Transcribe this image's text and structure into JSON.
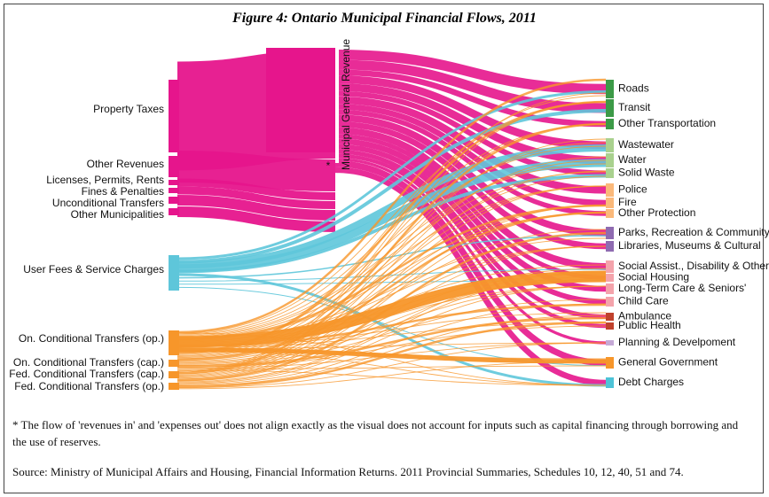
{
  "title": "Figure 4: Ontario Municipal Financial Flows, 2011",
  "sources": [
    {
      "label": "Property Taxes"
    },
    {
      "label": "Other Revenues"
    },
    {
      "label": "Licenses, Permits, Rents"
    },
    {
      "label": "Fines & Penalties"
    },
    {
      "label": "Unconditional Transfers"
    },
    {
      "label": "Other Municipalities"
    },
    {
      "label": "User Fees & Service Charges"
    },
    {
      "label": "On. Conditional Transfers (op.)"
    },
    {
      "label": "On. Conditional Transfers (cap.)"
    },
    {
      "label": "Fed. Conditional Transfers (cap.)"
    },
    {
      "label": "Fed. Conditional Transfers (op.)"
    }
  ],
  "middle": {
    "label": "Municipal General Revenue",
    "note_marker": "*"
  },
  "destinations": [
    {
      "label": "Roads"
    },
    {
      "label": "Transit"
    },
    {
      "label": "Other Transportation"
    },
    {
      "label": "Wastewater"
    },
    {
      "label": "Water"
    },
    {
      "label": "Solid Waste"
    },
    {
      "label": "Police"
    },
    {
      "label": "Fire"
    },
    {
      "label": "Other Protection"
    },
    {
      "label": "Parks, Recreation & Community"
    },
    {
      "label": "Libraries, Museums & Cultural"
    },
    {
      "label": "Social Assist., Disability & Other"
    },
    {
      "label": "Social Housing"
    },
    {
      "label": "Long-Term Care & Seniors'"
    },
    {
      "label": "Child Care"
    },
    {
      "label": "Ambulance"
    },
    {
      "label": "Public Health"
    },
    {
      "label": "Planning & Develpoment"
    },
    {
      "label": "General Government"
    },
    {
      "label": "Debt Charges"
    }
  ],
  "footnote": "* The flow of 'revenues in' and 'expenses out' does not align exactly as the visual does not account for inputs such as capital financing through borrowing and the use of reserves.",
  "source": "Source: Ministry of Municipal Affairs and Housing, Financial Information Returns. 2011 Provincial Summaries, Schedules 10, 12, 40, 51 and 74."
}
